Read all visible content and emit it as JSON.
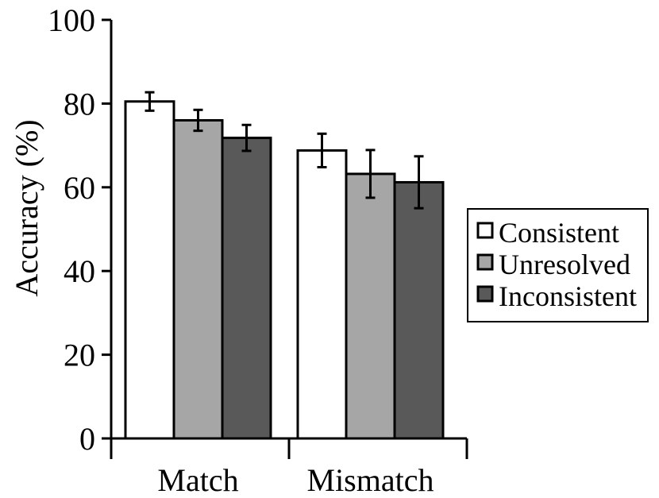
{
  "chart_data": {
    "type": "bar",
    "title": "",
    "xlabel": "",
    "ylabel": "Accuracy (%)",
    "ylim": [
      0,
      100
    ],
    "yticks": [
      0,
      20,
      40,
      60,
      80,
      100
    ],
    "categories": [
      "Match",
      "Mismatch"
    ],
    "series": [
      {
        "name": "Consistent",
        "color": "#ffffff",
        "values": [
          80.5,
          68.8
        ],
        "error": [
          2.2,
          4.0
        ]
      },
      {
        "name": "Unresolved",
        "color": "#a6a6a6",
        "values": [
          76.0,
          63.2
        ],
        "error": [
          2.5,
          5.7
        ]
      },
      {
        "name": "Inconsistent",
        "color": "#595959",
        "values": [
          71.8,
          61.2
        ],
        "error": [
          3.1,
          6.2
        ]
      }
    ],
    "legend": "right",
    "grid": false
  }
}
